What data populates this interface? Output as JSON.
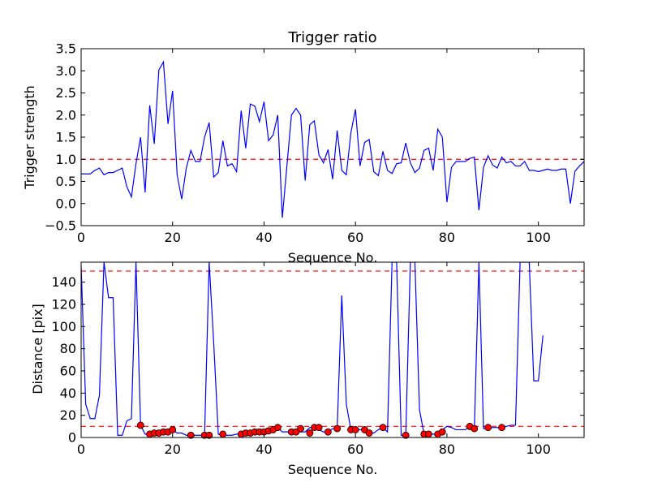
{
  "colors": {
    "line": "#0000ff",
    "threshold": "#ff0000",
    "marker": "#ff0000",
    "axes": "#000000",
    "background": "#ffffff"
  },
  "chart_data": [
    {
      "type": "line",
      "title": "Trigger ratio",
      "xlabel": "Sequence No.",
      "ylabel": "Trigger strength",
      "xlim": [
        0,
        110
      ],
      "ylim": [
        -0.5,
        3.5
      ],
      "xticks": [
        0,
        20,
        40,
        60,
        80,
        100
      ],
      "yticks": [
        -0.5,
        0.0,
        0.5,
        1.0,
        1.5,
        2.0,
        2.5,
        3.0,
        3.5
      ],
      "grid": false,
      "threshold": 1.0,
      "series": [
        {
          "x": [
            0,
            1,
            2,
            3,
            4,
            5,
            6,
            7,
            8,
            9,
            10,
            11,
            12,
            13,
            14,
            15,
            16,
            17,
            18,
            19,
            20,
            21,
            22,
            23,
            24,
            25,
            26,
            27,
            28,
            29,
            30,
            31,
            32,
            33,
            34,
            35,
            36,
            37,
            38,
            39,
            40,
            41,
            42,
            43,
            44,
            45,
            46,
            47,
            48,
            49,
            50,
            51,
            52,
            53,
            54,
            55,
            56,
            57,
            58,
            59,
            60,
            61,
            62,
            63,
            64,
            65,
            66,
            67,
            68,
            69,
            70,
            71,
            72,
            73,
            74,
            75,
            76,
            77,
            78,
            79,
            80,
            81,
            82,
            83,
            84,
            85,
            86,
            87,
            88,
            89,
            90,
            91,
            92,
            93,
            94,
            95,
            96,
            97,
            98,
            99,
            100,
            101,
            102,
            103,
            104,
            105,
            106,
            107,
            108,
            109,
            110
          ],
          "y": [
            0.67,
            0.67,
            0.67,
            0.75,
            0.8,
            0.65,
            0.7,
            0.7,
            0.75,
            0.8,
            0.38,
            0.15,
            0.9,
            1.5,
            0.25,
            2.22,
            1.35,
            3.02,
            3.2,
            1.8,
            2.55,
            0.65,
            0.1,
            0.8,
            1.2,
            0.95,
            0.95,
            1.5,
            1.83,
            0.6,
            0.7,
            1.42,
            0.85,
            0.9,
            0.72,
            2.1,
            1.25,
            2.25,
            2.2,
            1.85,
            2.3,
            1.42,
            1.55,
            2.0,
            -0.32,
            0.85,
            2.0,
            2.15,
            2.0,
            0.52,
            1.78,
            1.87,
            1.1,
            0.92,
            1.22,
            0.55,
            1.65,
            0.75,
            0.65,
            1.6,
            2.13,
            0.85,
            1.38,
            1.45,
            0.72,
            0.63,
            1.18,
            0.75,
            0.68,
            0.9,
            0.92,
            1.37,
            0.92,
            0.7,
            0.8,
            1.2,
            1.25,
            0.75,
            1.68,
            1.5,
            0.03,
            0.82,
            0.95,
            0.95,
            0.95,
            1.02,
            1.05,
            -0.15,
            0.82,
            1.08,
            0.87,
            0.8,
            1.05,
            0.92,
            0.95,
            0.85,
            0.85,
            0.95,
            0.75,
            0.75,
            0.72,
            0.75,
            0.78,
            0.75,
            0.75,
            0.78,
            0.78,
            0.0,
            0.73,
            0.85,
            0.95
          ]
        }
      ]
    },
    {
      "type": "line",
      "title": "",
      "xlabel": "Sequence No.",
      "ylabel": "Distance [pix]",
      "xlim": [
        0,
        110
      ],
      "ylim": [
        0,
        158
      ],
      "xticks": [
        0,
        20,
        40,
        60,
        80,
        100
      ],
      "yticks": [
        0,
        20,
        40,
        60,
        80,
        100,
        120,
        140
      ],
      "grid": false,
      "thresholds": [
        150,
        10
      ],
      "series": [
        {
          "x": [
            0,
            1,
            2,
            3,
            4,
            5,
            6,
            7,
            8,
            9,
            10,
            11,
            12,
            13,
            14,
            15,
            16,
            17,
            18,
            19,
            20,
            21,
            22,
            23,
            24,
            25,
            26,
            27,
            28,
            29,
            30,
            31,
            32,
            33,
            34,
            35,
            36,
            37,
            38,
            39,
            40,
            41,
            42,
            43,
            44,
            45,
            46,
            47,
            48,
            49,
            50,
            51,
            52,
            53,
            54,
            55,
            56,
            57,
            58,
            59,
            60,
            61,
            62,
            63,
            64,
            65,
            66,
            67,
            68,
            69,
            70,
            71,
            72,
            73,
            74,
            75,
            76,
            77,
            78,
            79,
            80,
            81,
            82,
            83,
            84,
            85,
            86,
            87,
            88,
            89,
            90,
            91,
            92,
            93,
            94,
            95,
            96,
            97,
            98,
            99,
            100,
            101
          ],
          "y": [
            155,
            30,
            17,
            17,
            38,
            158,
            126,
            126,
            2,
            2,
            15,
            17,
            158,
            11,
            3,
            3,
            4,
            4,
            5,
            5,
            7,
            4,
            4,
            2,
            2,
            2,
            2,
            2,
            158,
            85,
            3,
            2,
            2,
            2,
            3,
            3,
            4,
            4,
            5,
            5,
            5,
            6,
            7,
            9,
            5,
            5,
            5,
            5,
            5,
            5,
            9,
            9,
            7,
            5,
            5,
            8,
            8,
            128,
            30,
            7,
            7,
            7,
            7,
            4,
            4,
            7,
            9,
            5,
            158,
            158,
            2,
            2,
            158,
            158,
            25,
            3,
            3,
            3,
            3,
            7,
            10,
            9,
            7,
            7,
            7,
            10,
            8,
            158,
            8,
            8,
            9,
            9,
            9,
            10,
            11,
            11,
            158,
            158,
            158,
            51,
            51,
            92
          ]
        }
      ],
      "markers": {
        "x": [
          13,
          15,
          16,
          17,
          18,
          19,
          20,
          24,
          27,
          28,
          31,
          35,
          36,
          37,
          38,
          39,
          40,
          41,
          42,
          43,
          46,
          47,
          48,
          50,
          51,
          52,
          54,
          56,
          59,
          60,
          62,
          63,
          66,
          71,
          75,
          76,
          78,
          79,
          85,
          86,
          89,
          92
        ],
        "y": [
          11,
          3,
          4,
          4,
          5,
          5,
          7,
          2,
          2,
          2,
          3,
          3,
          4,
          4,
          5,
          5,
          5,
          6,
          7,
          9,
          5,
          5,
          8,
          4,
          9,
          9,
          5,
          8,
          7,
          7,
          7,
          4,
          9,
          2,
          3,
          3,
          3,
          5,
          10,
          8,
          9,
          9
        ]
      }
    }
  ]
}
